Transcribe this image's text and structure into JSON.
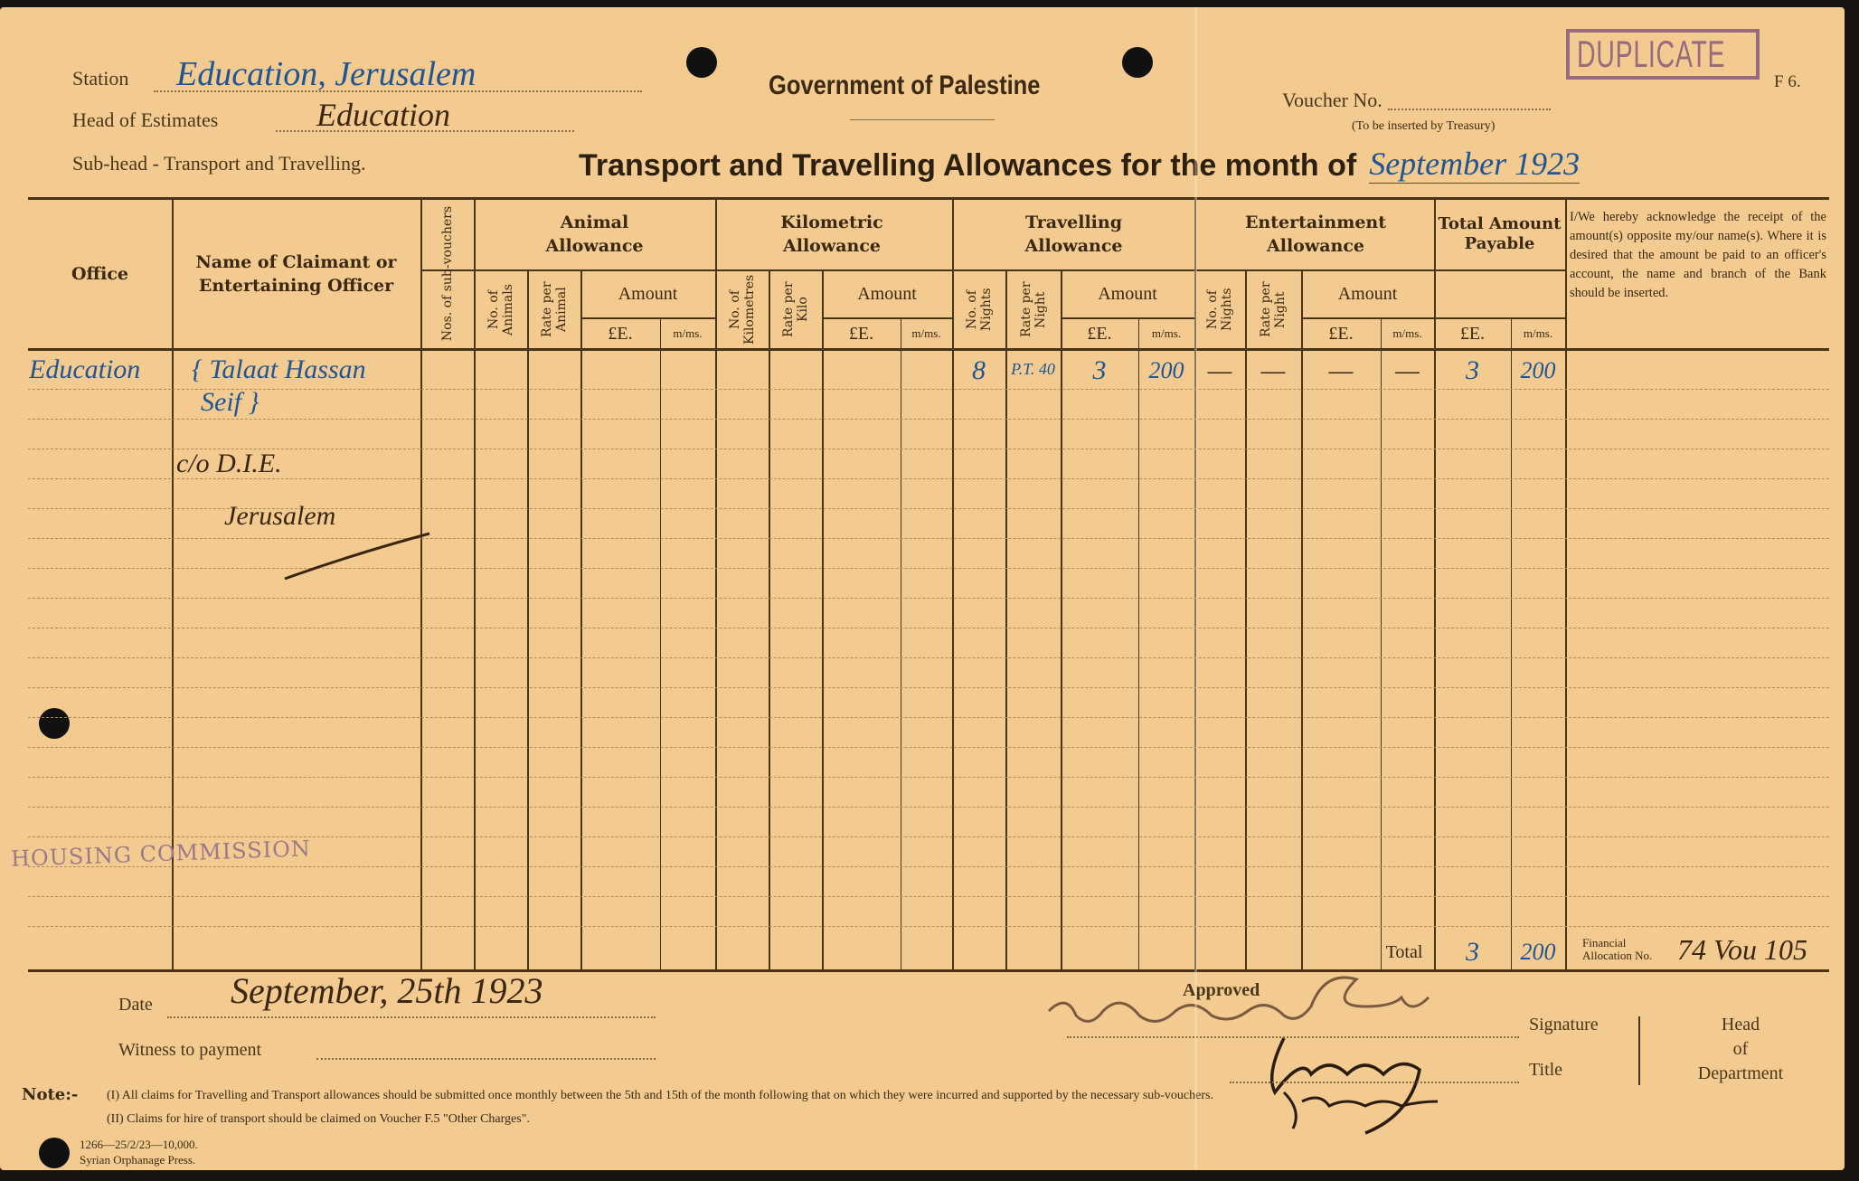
{
  "header": {
    "station_label": "Station",
    "station_value": "Education, Jerusalem",
    "head_label": "Head of Estimates",
    "head_value": "Education",
    "subhead": "Sub-head - Transport and Travelling.",
    "government": "Government of Palestine",
    "voucher_label": "Voucher No.",
    "voucher_note": "(To be inserted by Treasury)",
    "stamp": "DUPLICATE",
    "form_code": "F 6.",
    "title": "Transport and Travelling Allowances for the month of",
    "month_value": "September 1923"
  },
  "table": {
    "headers": {
      "office": "Office",
      "name": "Name of Claimant or Entertaining Officer",
      "sub_vouchers": "Nos. of sub-vouchers",
      "animal": "Animal Allowance",
      "animal_no": "No. of Animals",
      "animal_rate": "Rate per Animal",
      "kilometric": "Kilometric Allowance",
      "km_no": "No. of Kilometres",
      "km_rate": "Rate per Kilo",
      "travelling": "Travelling Allowance",
      "trav_no": "No. of Nights",
      "trav_rate": "Rate per Night",
      "entertainment": "Entertainment Allowance",
      "ent_no": "No. of Nights",
      "ent_rate": "Rate per Night",
      "amount": "Amount",
      "le": "£E.",
      "ms": "m/ms.",
      "total": "Total Amount Payable",
      "acknowledgement": "I/We hereby acknowledge the receipt of the amount(s) opposite my/our name(s). Where it is desired that the amount be paid to an officer's account, the name and branch of the Bank should be inserted."
    },
    "row": {
      "office": "Education",
      "name_line1": "{ Talaat Hassan",
      "name_line2": "Seif }",
      "name_line3": "c/o D.I.E.",
      "name_line4": "Jerusalem",
      "trav_nights": "8",
      "trav_rate": "P.T. 40",
      "trav_le": "3",
      "trav_ms": "200",
      "ent_nights": "—",
      "ent_rate": "—",
      "ent_le": "—",
      "ent_ms": "—",
      "total_le": "3",
      "total_ms": "200"
    },
    "total_label": "Total",
    "total_le": "3",
    "total_ms": "200",
    "allocation_label_1": "Financial",
    "allocation_label_2": "Allocation No.",
    "allocation_value": "74 Vou 105"
  },
  "stamp_housing": "HOUSING COMMISSION",
  "footer": {
    "date_label": "Date",
    "date_value": "September, 25th 1923",
    "witness_label": "Witness to payment",
    "approved_label": "Approved",
    "signature_label": "Signature",
    "title_label": "Title",
    "head_of_department": [
      "Head",
      "of",
      "Department"
    ],
    "note_label": "Note:-",
    "note_1": "(I)  All claims for Travelling and Transport allowances should be submitted once monthly between the 5th and 15th of the month following that on which they were incurred and supported by the necessary sub-vouchers.",
    "note_2": "(II)  Claims for hire of transport should be claimed on Voucher F.5 \"Other Charges\".",
    "print_code": "1266—25/2/23—10,000.",
    "printer": "Syrian Orphanage Press."
  }
}
